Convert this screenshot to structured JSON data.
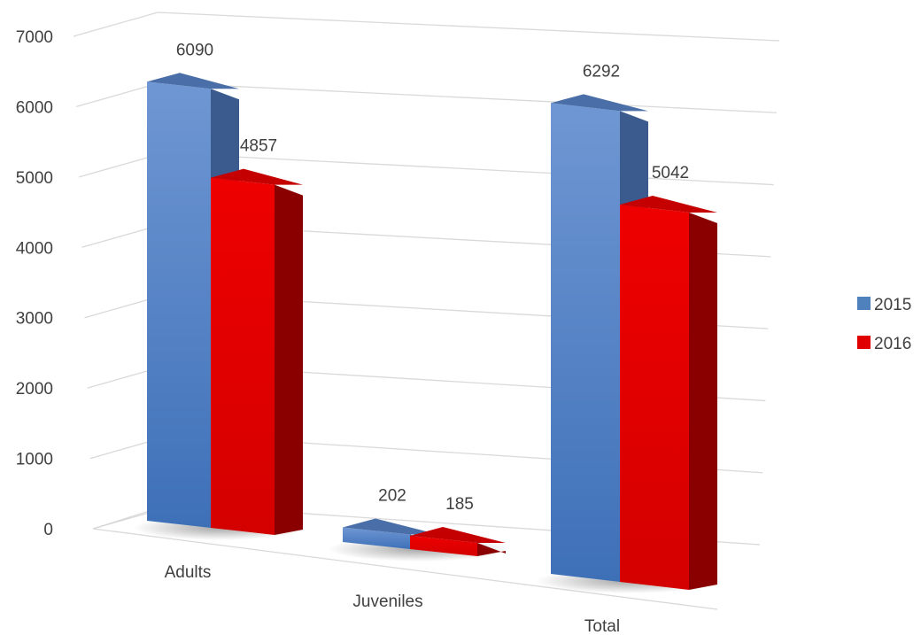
{
  "chart_data": {
    "type": "bar",
    "categories": [
      "Adults",
      "Juveniles",
      "Total"
    ],
    "series": [
      {
        "name": "2015",
        "values": [
          6090,
          202,
          6292
        ],
        "color": "#4F81BD"
      },
      {
        "name": "2016",
        "values": [
          4857,
          185,
          5042
        ],
        "color": "#E00000"
      }
    ],
    "yticks": [
      0,
      1000,
      2000,
      3000,
      4000,
      5000,
      6000,
      7000
    ],
    "ylim": [
      0,
      7000
    ],
    "title": "",
    "xlabel": "",
    "ylabel": "",
    "grid": true,
    "legend_position": "right",
    "style": "3d-perspective-column"
  }
}
